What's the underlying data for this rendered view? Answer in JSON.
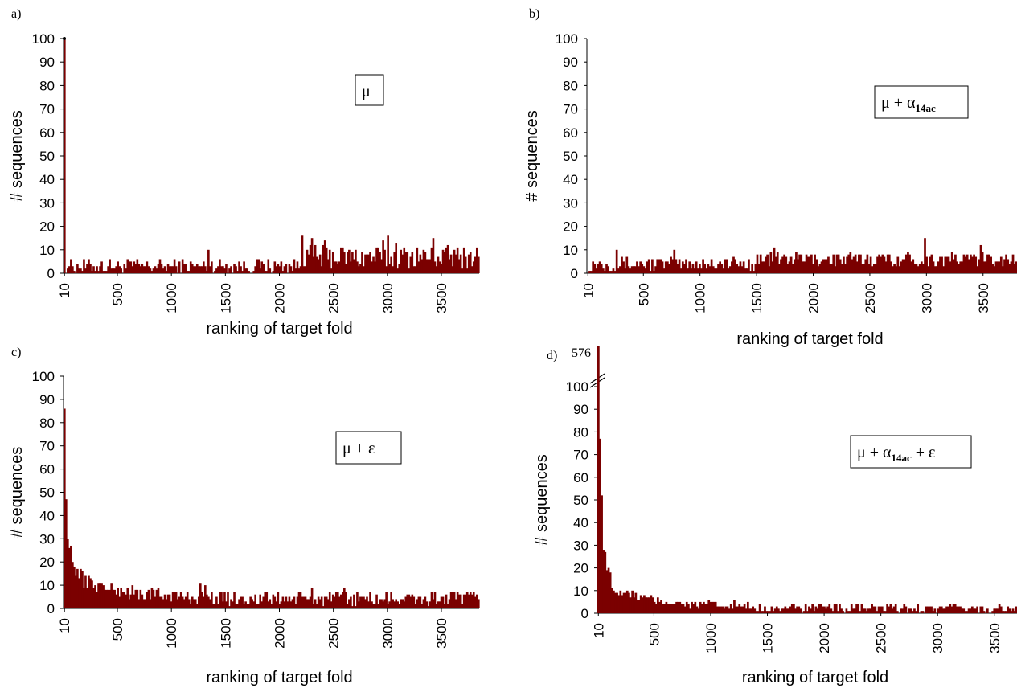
{
  "chart_data": [
    {
      "panel": "a)",
      "type": "bar",
      "legend_label": "μ",
      "legend_sub": "",
      "legend_suffix": "",
      "xlabel": "ranking of target fold",
      "ylabel": "# sequences",
      "ylim": [
        0,
        100
      ],
      "yticks": [
        0,
        10,
        20,
        30,
        40,
        50,
        60,
        70,
        80,
        90,
        100
      ],
      "xticks": [
        "10",
        "500",
        "1000",
        "1500",
        "2000",
        "2500",
        "3000",
        "3500"
      ],
      "xlim": [
        1,
        3850
      ],
      "bin_width": 15,
      "series": [
        {
          "x_end": 10,
          "value": 100
        },
        {
          "x_start": 10,
          "x_end": 2200,
          "level": 3,
          "amp": 3
        },
        {
          "x_start": 2200,
          "x_end": 3850,
          "level": 7,
          "amp": 5
        }
      ],
      "peaks": [
        {
          "x": 2210,
          "value": 16
        },
        {
          "x": 2290,
          "value": 15
        },
        {
          "x": 2420,
          "value": 14
        },
        {
          "x": 2960,
          "value": 14
        },
        {
          "x": 3000,
          "value": 16
        },
        {
          "x": 3080,
          "value": 13
        },
        {
          "x": 3420,
          "value": 15
        },
        {
          "x": 1330,
          "value": 10
        }
      ]
    },
    {
      "panel": "b)",
      "type": "bar",
      "legend_label": "μ + α",
      "legend_sub": "14ac",
      "legend_suffix": "",
      "xlabel": "ranking of target fold",
      "ylabel": "# sequences",
      "ylim": [
        0,
        100
      ],
      "yticks": [
        0,
        10,
        20,
        30,
        40,
        50,
        60,
        70,
        80,
        90,
        100
      ],
      "xticks": [
        "10",
        "500",
        "1000",
        "1500",
        "2000",
        "2500",
        "3000",
        "3500"
      ],
      "xlim": [
        1,
        3800
      ],
      "bin_width": 15,
      "series": [
        {
          "x_start": 10,
          "x_end": 1500,
          "level": 4,
          "amp": 3
        },
        {
          "x_start": 1500,
          "x_end": 3800,
          "level": 6,
          "amp": 3
        }
      ],
      "peaks": [
        {
          "x": 260,
          "value": 10
        },
        {
          "x": 760,
          "value": 10
        },
        {
          "x": 2980,
          "value": 15
        },
        {
          "x": 3480,
          "value": 12
        },
        {
          "x": 1650,
          "value": 11
        }
      ]
    },
    {
      "panel": "c)",
      "type": "bar",
      "legend_label": "μ +  ε",
      "legend_sub": "",
      "legend_suffix": "",
      "xlabel": "ranking of target fold",
      "ylabel": "# sequences",
      "ylim": [
        0,
        100
      ],
      "yticks": [
        0,
        10,
        20,
        30,
        40,
        50,
        60,
        70,
        80,
        90,
        100
      ],
      "xticks": [
        "10",
        "500",
        "1000",
        "1500",
        "2000",
        "2500",
        "3000",
        "3500"
      ],
      "xlim": [
        1,
        3850
      ],
      "bin_width": 15,
      "decay": {
        "head": [
          86,
          47,
          30,
          26,
          27,
          20,
          18,
          14,
          17,
          13,
          17,
          16
        ],
        "tail_level": 4,
        "amp": 3
      },
      "peaks": [
        {
          "x": 1260,
          "value": 11
        },
        {
          "x": 1310,
          "value": 10
        },
        {
          "x": 2290,
          "value": 9
        },
        {
          "x": 2600,
          "value": 9
        },
        {
          "x": 3440,
          "value": 7
        }
      ]
    },
    {
      "panel": "d)",
      "type": "bar",
      "legend_label": "μ + α",
      "legend_sub": "14ac",
      "legend_suffix": " + ε",
      "xlabel": "ranking of target fold",
      "ylabel": "# sequences",
      "ylim": [
        0,
        100
      ],
      "break_value": "576",
      "yticks": [
        0,
        10,
        20,
        30,
        40,
        50,
        60,
        70,
        80,
        90,
        100
      ],
      "xticks": [
        "10",
        "500",
        "1000",
        "1500",
        "2000",
        "2500",
        "3000",
        "3500"
      ],
      "xlim": [
        1,
        3700
      ],
      "bin_width": 15,
      "decay": {
        "first": 576,
        "head": [
          77,
          52,
          28,
          27,
          19,
          20,
          18,
          11,
          10,
          9,
          9
        ],
        "tail_level": 2,
        "amp": 2
      },
      "peaks": [
        {
          "x": 1200,
          "value": 6
        },
        {
          "x": 980,
          "value": 6
        },
        {
          "x": 2130,
          "value": 4
        }
      ]
    }
  ]
}
